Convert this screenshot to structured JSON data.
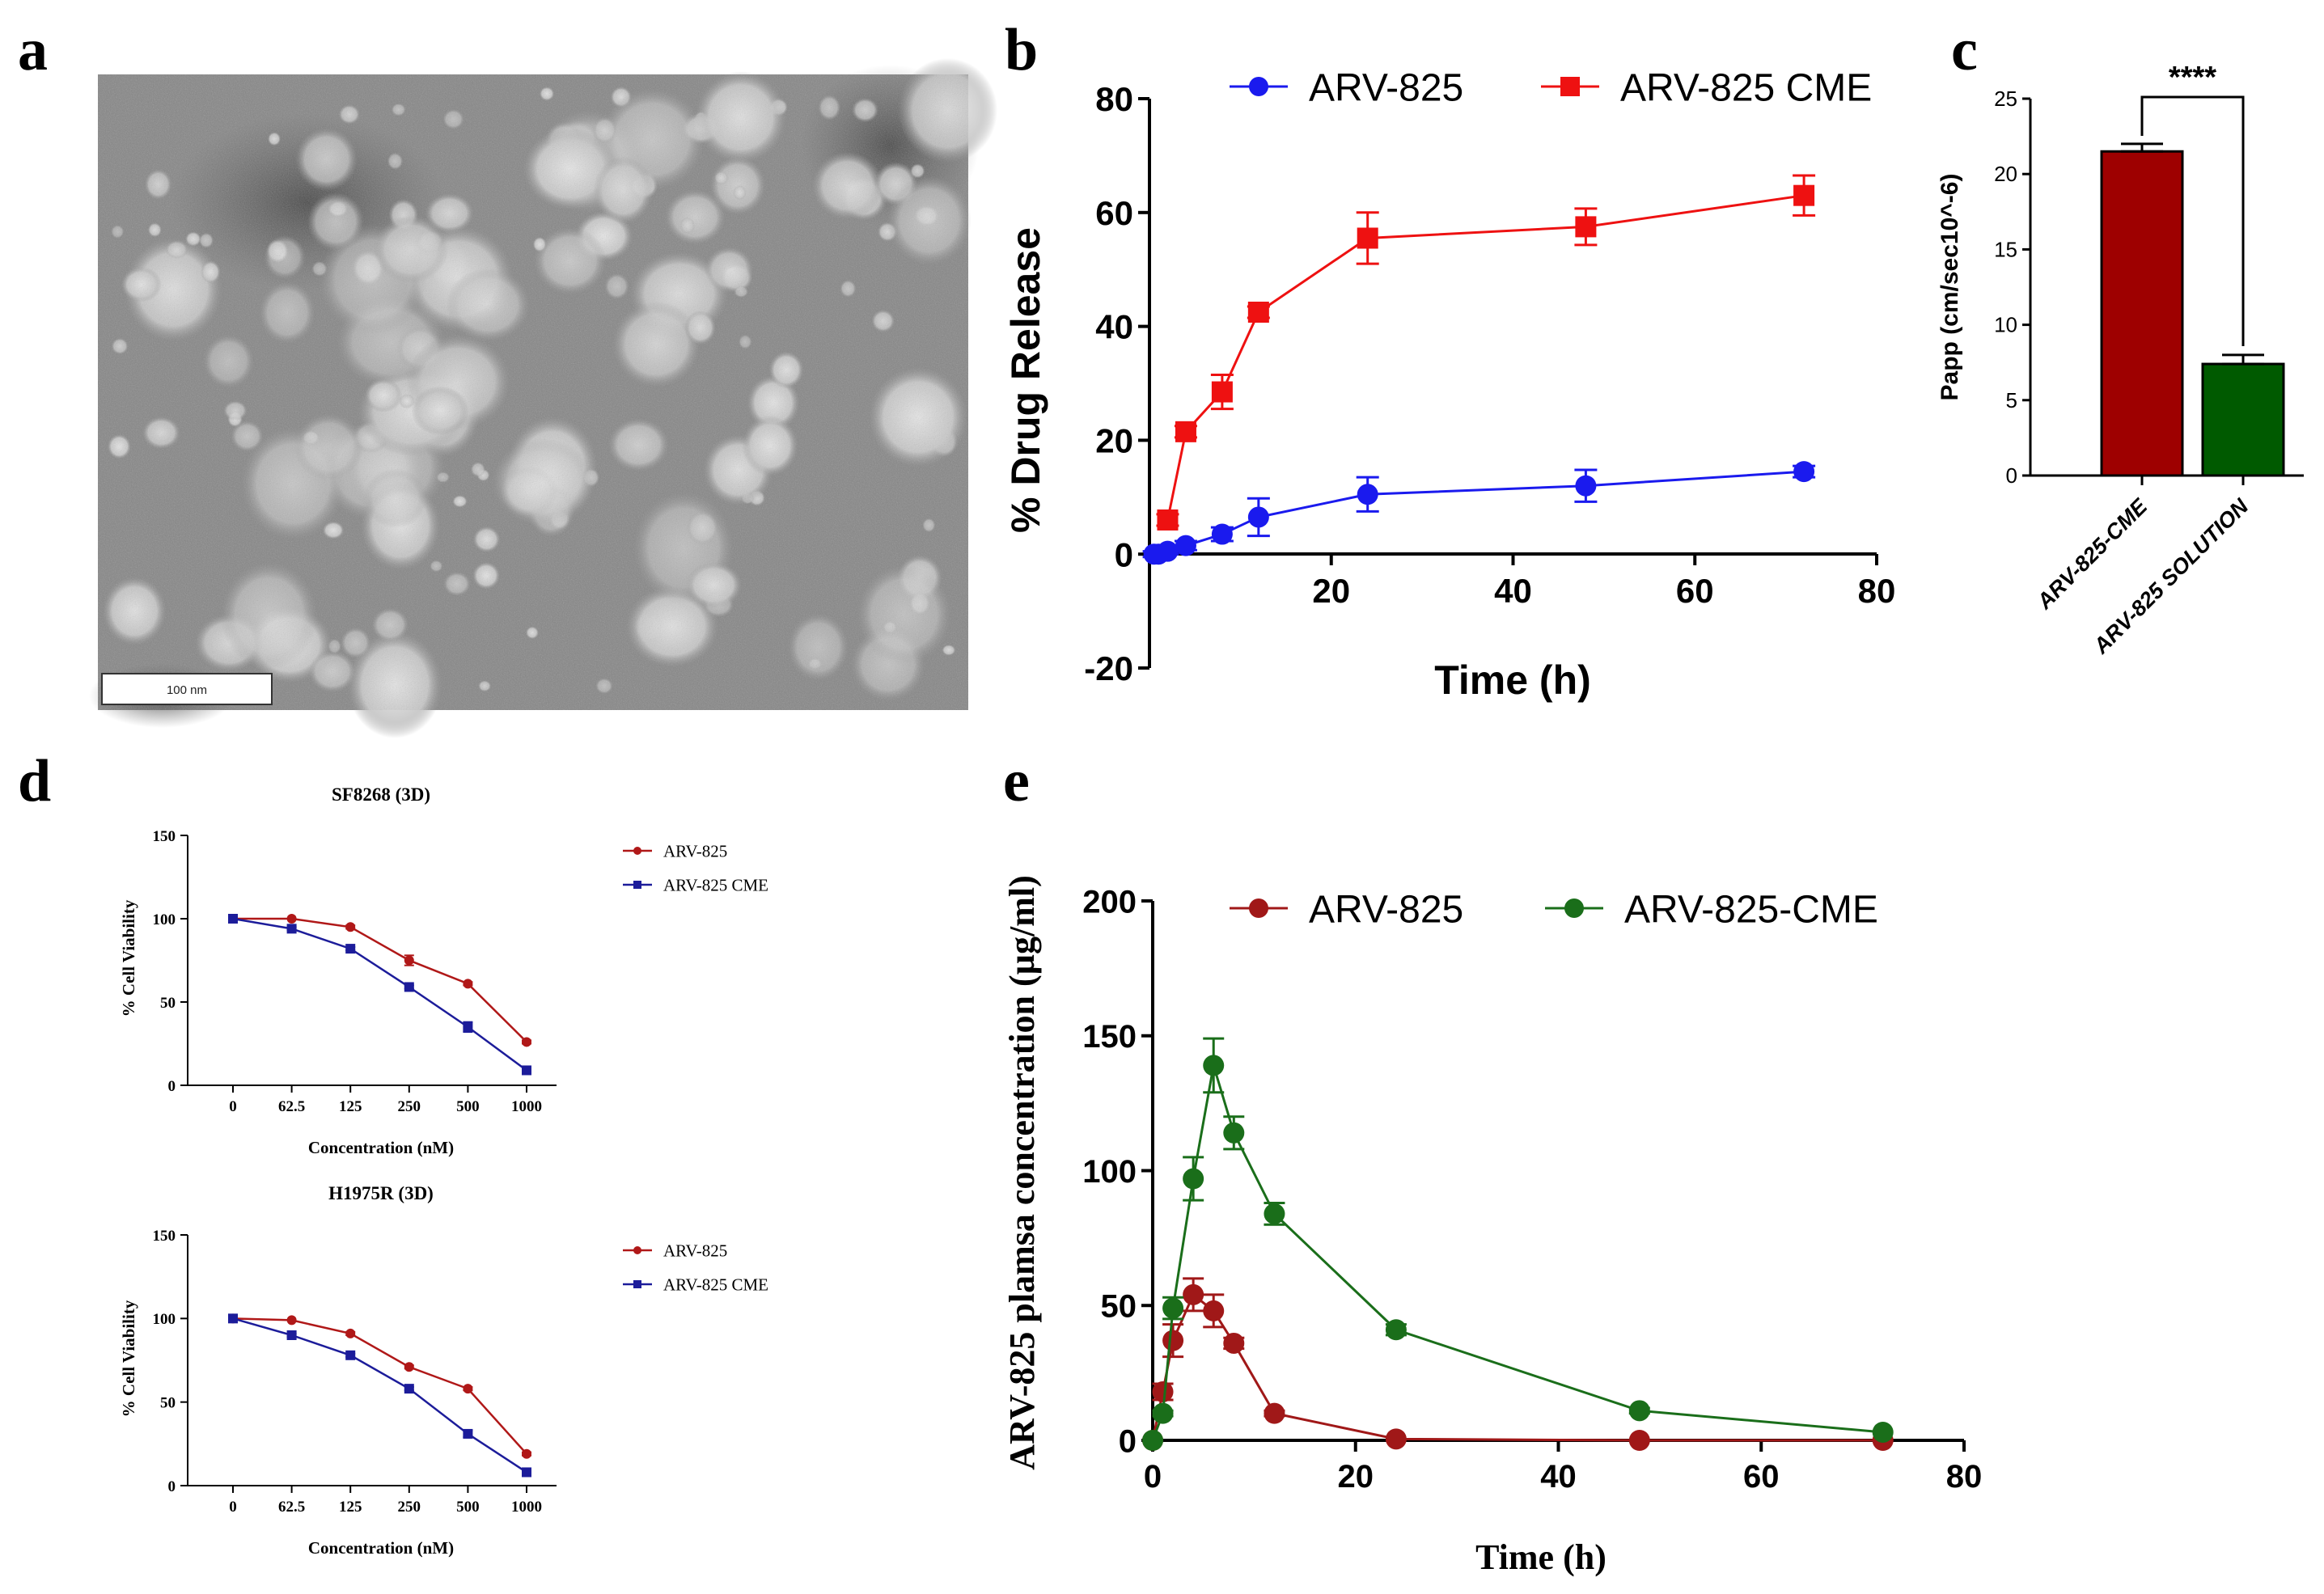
{
  "panel_letters": {
    "a": "a",
    "b": "b",
    "c": "c",
    "d": "d",
    "e": "e"
  },
  "micrograph": {
    "scale_bar_label": "100 nm"
  },
  "chart_data": [
    {
      "id": "b",
      "type": "line",
      "xlabel": "Time (h)",
      "ylabel": "% Drug Release",
      "xlim": [
        0,
        80
      ],
      "ylim": [
        -20,
        80
      ],
      "xticks": [
        "20",
        "40",
        "60",
        "80"
      ],
      "yticks": [
        "-20",
        "0",
        "20",
        "40",
        "60",
        "80"
      ],
      "legend_position": "top",
      "grid": false,
      "series": [
        {
          "name": "ARV-825",
          "color": "#1a1aee",
          "marker": "circle",
          "x": [
            0.5,
            1,
            2,
            4,
            8,
            12,
            24,
            48,
            72
          ],
          "y": [
            0,
            0,
            0.5,
            1.5,
            3.5,
            6.5,
            10.5,
            12,
            14.5
          ],
          "err": [
            0.5,
            0.5,
            0.5,
            0.8,
            1.2,
            3.3,
            3,
            2.8,
            1
          ]
        },
        {
          "name": "ARV-825 CME",
          "color": "#ee1111",
          "marker": "square",
          "x": [
            2,
            4,
            8,
            12,
            24,
            48,
            72
          ],
          "y": [
            6,
            21.5,
            28.5,
            42.5,
            55.5,
            57.5,
            63
          ],
          "err": [
            1,
            1,
            3,
            1,
            4.5,
            3.2,
            3.5
          ]
        }
      ]
    },
    {
      "id": "c",
      "type": "bar",
      "ylabel": "Papp (cm/sec10^-6)",
      "ylim": [
        0,
        25
      ],
      "yticks": [
        "0",
        "5",
        "10",
        "15",
        "20",
        "25"
      ],
      "categories": [
        "ARV-825-CME",
        "ARV-825 SOLUTION"
      ],
      "values": [
        21.5,
        7.4
      ],
      "errors": [
        0.5,
        0.6
      ],
      "colors": [
        "#9e0000",
        "#005a00"
      ],
      "annotation": "****"
    },
    {
      "id": "d1",
      "type": "line",
      "title": "SF8268 (3D)",
      "xlabel": "Concentration (nM)",
      "ylabel": "% Cell Viability",
      "categories": [
        "0",
        "62.5",
        "125",
        "250",
        "500",
        "1000"
      ],
      "ylim": [
        0,
        150
      ],
      "yticks": [
        "0",
        "50",
        "100",
        "150"
      ],
      "legend_position": "right",
      "series": [
        {
          "name": "ARV-825",
          "color": "#b01818",
          "marker": "circle",
          "values": [
            100,
            100,
            95,
            75,
            61,
            26
          ],
          "err": [
            0,
            0,
            1,
            3,
            1,
            1
          ]
        },
        {
          "name": "ARV-825 CME",
          "color": "#1c1c9a",
          "marker": "square",
          "values": [
            100,
            94,
            82,
            59,
            35,
            9
          ],
          "err": [
            0,
            1,
            1,
            1,
            3,
            1
          ]
        }
      ]
    },
    {
      "id": "d2",
      "type": "line",
      "title": "H1975R (3D)",
      "xlabel": "Concentration (nM)",
      "ylabel": "% Cell Viability",
      "categories": [
        "0",
        "62.5",
        "125",
        "250",
        "500",
        "1000"
      ],
      "ylim": [
        0,
        150
      ],
      "yticks": [
        "0",
        "50",
        "100",
        "150"
      ],
      "legend_position": "right",
      "series": [
        {
          "name": "ARV-825",
          "color": "#b01818",
          "marker": "circle",
          "values": [
            100,
            99,
            91,
            71,
            58,
            19
          ],
          "err": [
            0,
            0,
            1,
            1,
            1,
            1
          ]
        },
        {
          "name": "ARV-825 CME",
          "color": "#1c1c9a",
          "marker": "square",
          "values": [
            100,
            90,
            78,
            58,
            31,
            8
          ],
          "err": [
            0,
            1,
            1,
            1,
            2,
            1
          ]
        }
      ]
    },
    {
      "id": "e",
      "type": "line",
      "xlabel": "Time (h)",
      "ylabel": "ARV-825 plamsa concentration (µg/ml)",
      "xlim": [
        0,
        80
      ],
      "ylim": [
        0,
        200
      ],
      "xticks": [
        "0",
        "20",
        "40",
        "60",
        "80"
      ],
      "yticks": [
        "0",
        "50",
        "100",
        "150",
        "200"
      ],
      "legend_position": "top",
      "series": [
        {
          "name": "ARV-825",
          "color": "#a01818",
          "marker": "circle",
          "x": [
            0,
            1,
            2,
            4,
            6,
            8,
            12,
            24,
            48,
            72
          ],
          "y": [
            0,
            18,
            37,
            54,
            48,
            36,
            10,
            0.5,
            0,
            0
          ],
          "err": [
            0,
            3,
            6,
            6,
            6,
            2,
            1,
            0,
            0,
            0
          ]
        },
        {
          "name": "ARV-825-CME",
          "color": "#1a6e1a",
          "marker": "circle",
          "x": [
            0,
            1,
            2,
            4,
            6,
            8,
            12,
            24,
            48,
            72
          ],
          "y": [
            0,
            10,
            49,
            97,
            139,
            114,
            84,
            41,
            11,
            3
          ],
          "err": [
            0,
            1,
            4,
            8,
            10,
            6,
            4,
            2,
            1,
            0
          ]
        }
      ]
    }
  ]
}
